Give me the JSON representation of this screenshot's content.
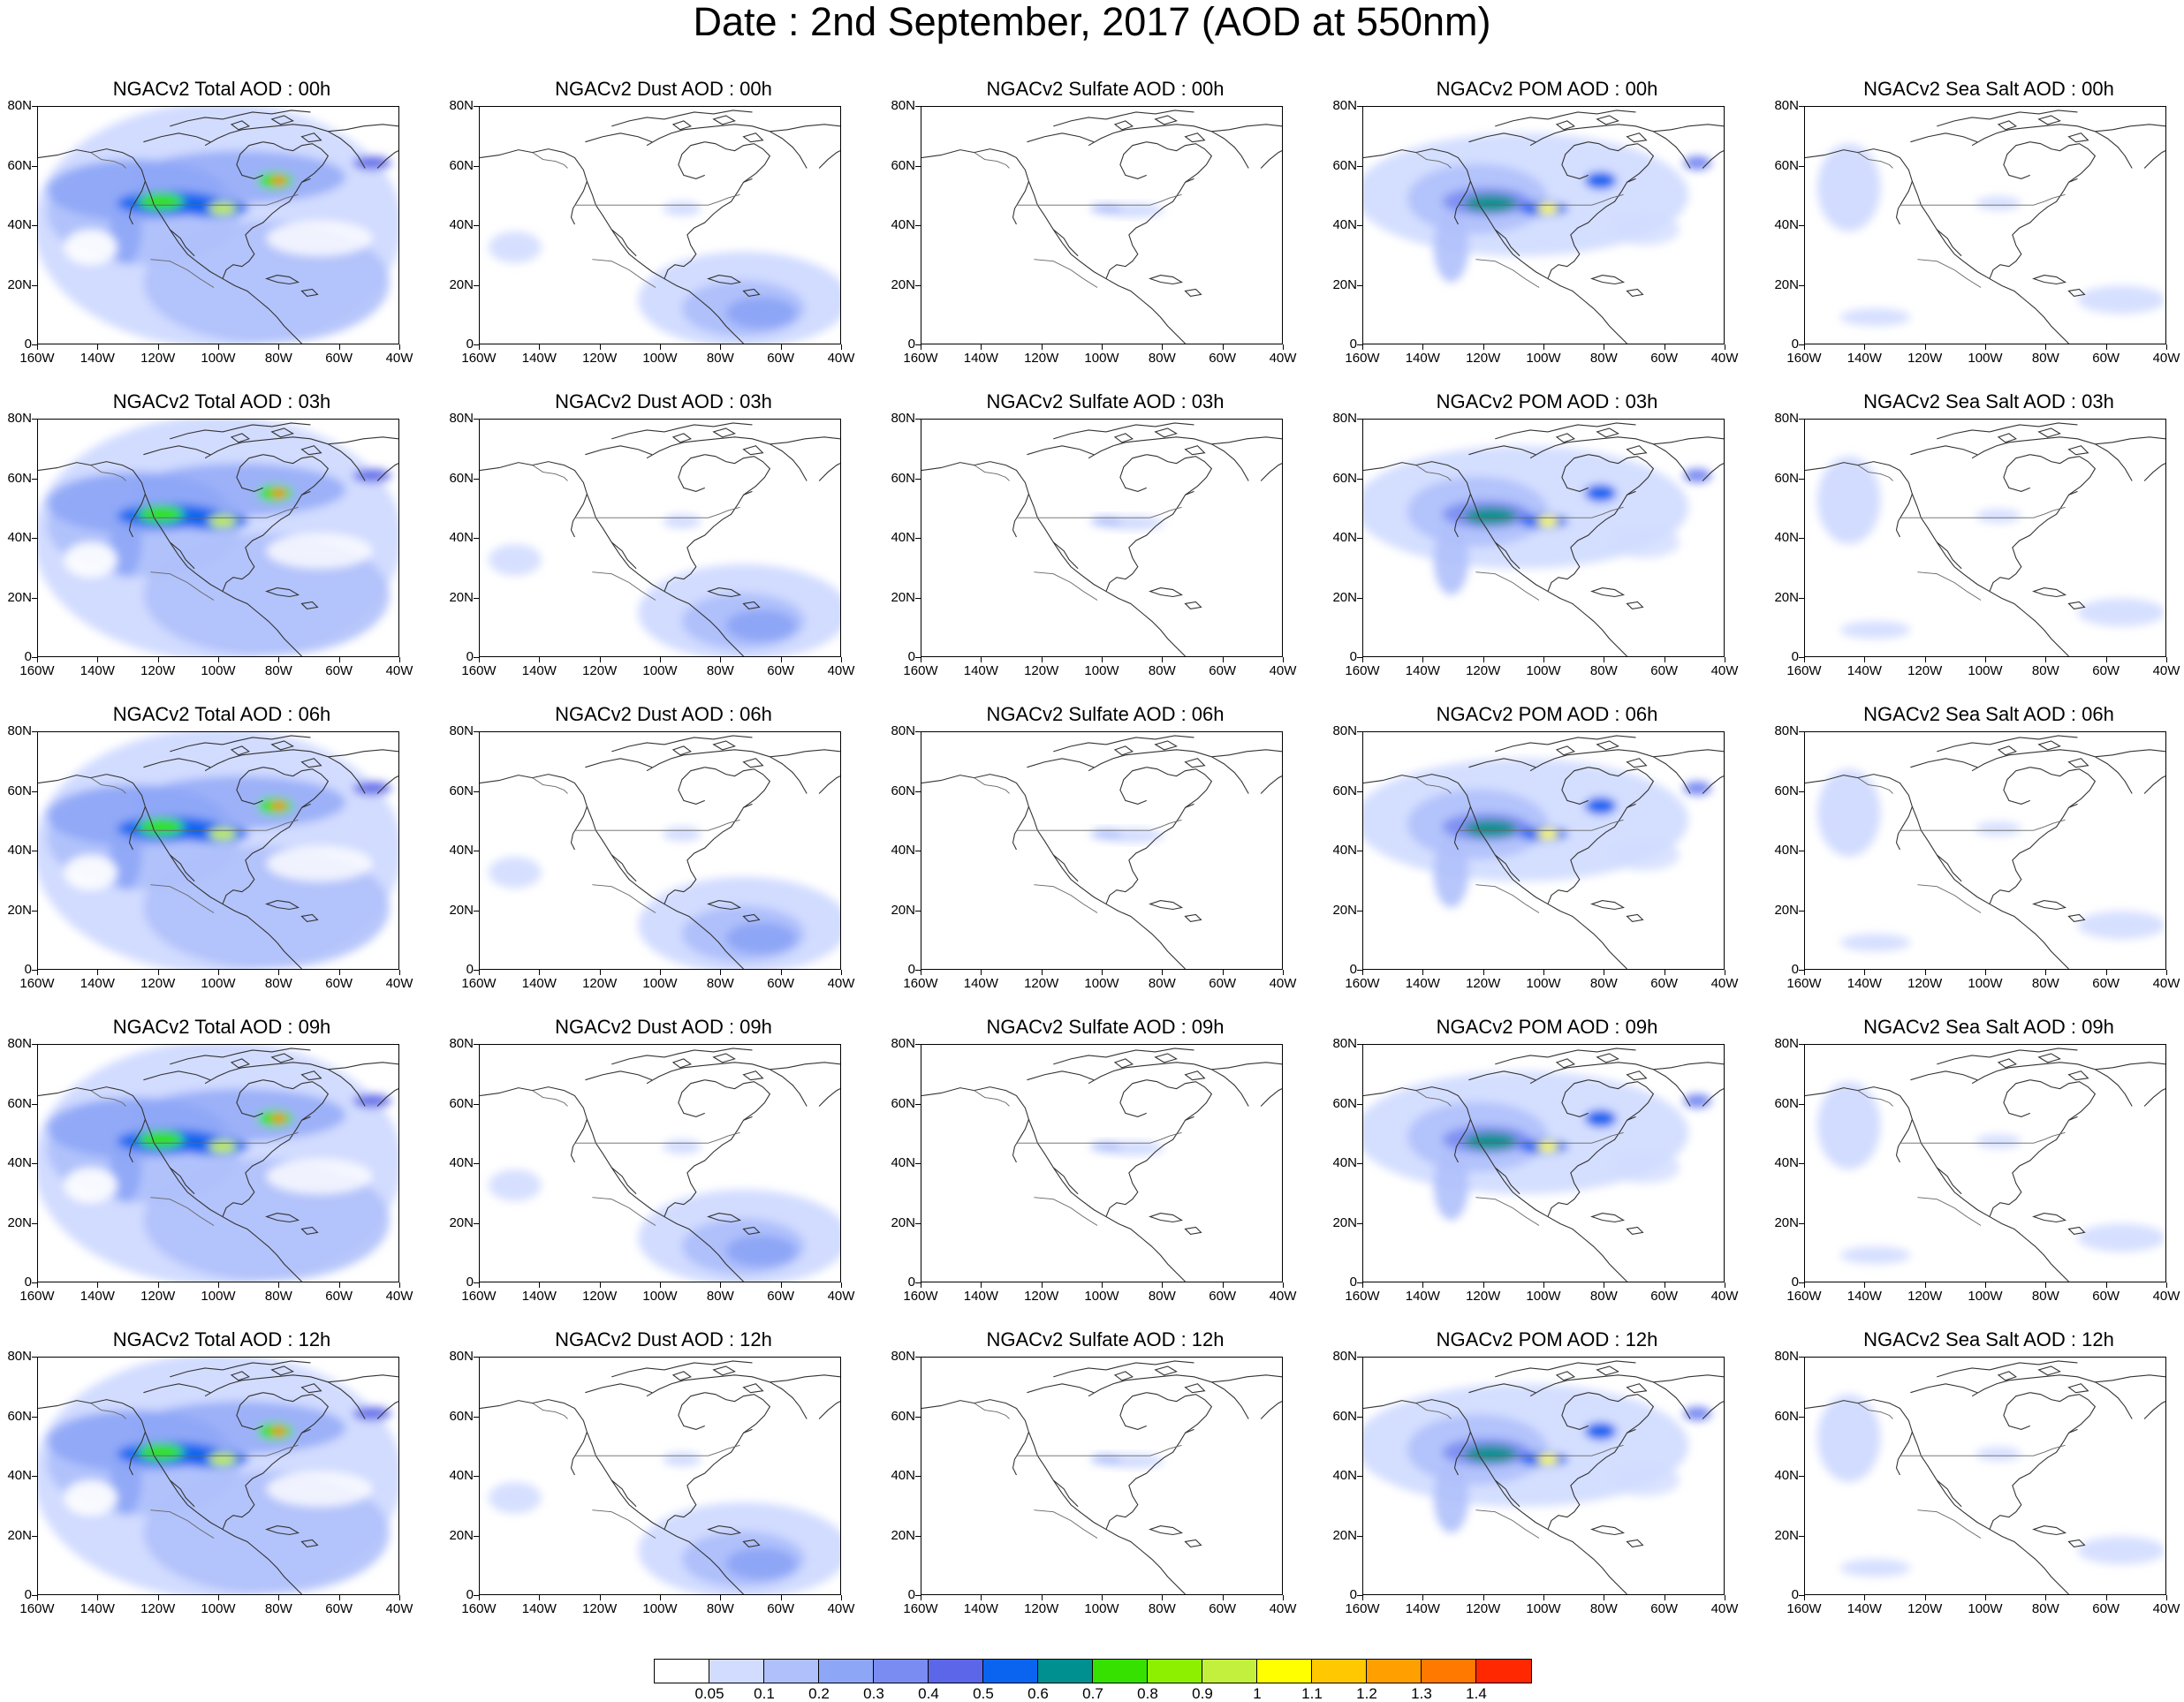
{
  "title": "Date : 2nd September, 2017 (AOD at 550nm)",
  "panels": [
    {
      "title": "NGACv2 Total AOD : 00h",
      "field": "total"
    },
    {
      "title": "NGACv2 Dust AOD : 00h",
      "field": "dust"
    },
    {
      "title": "NGACv2 Sulfate AOD : 00h",
      "field": "sulfate"
    },
    {
      "title": "NGACv2 POM AOD : 00h",
      "field": "pom"
    },
    {
      "title": "NGACv2 Sea Salt AOD : 00h",
      "field": "seasalt"
    },
    {
      "title": "NGACv2 Total AOD : 03h",
      "field": "total"
    },
    {
      "title": "NGACv2 Dust AOD : 03h",
      "field": "dust"
    },
    {
      "title": "NGACv2 Sulfate AOD : 03h",
      "field": "sulfate"
    },
    {
      "title": "NGACv2 POM AOD : 03h",
      "field": "pom"
    },
    {
      "title": "NGACv2 Sea Salt AOD : 03h",
      "field": "seasalt"
    },
    {
      "title": "NGACv2 Total AOD : 06h",
      "field": "total"
    },
    {
      "title": "NGACv2 Dust AOD : 06h",
      "field": "dust"
    },
    {
      "title": "NGACv2 Sulfate AOD : 06h",
      "field": "sulfate"
    },
    {
      "title": "NGACv2 POM AOD : 06h",
      "field": "pom"
    },
    {
      "title": "NGACv2 Sea Salt AOD : 06h",
      "field": "seasalt"
    },
    {
      "title": "NGACv2 Total AOD : 09h",
      "field": "total"
    },
    {
      "title": "NGACv2 Dust AOD : 09h",
      "field": "dust"
    },
    {
      "title": "NGACv2 Sulfate AOD : 09h",
      "field": "sulfate"
    },
    {
      "title": "NGACv2 POM AOD : 09h",
      "field": "pom"
    },
    {
      "title": "NGACv2 Sea Salt  AOD : 09h",
      "field": "seasalt"
    },
    {
      "title": "NGACv2 Total AOD  : 12h",
      "field": "total"
    },
    {
      "title": "NGACv2 Dust AOD : 12h",
      "field": "dust"
    },
    {
      "title": "NGACv2 Sulfate AOD : 12h",
      "field": "sulfate"
    },
    {
      "title": "NGACv2 POM  AOD : 12h",
      "field": "pom"
    },
    {
      "title": "NGACv2 Sea Salt  AOD : 12h",
      "field": "seasalt"
    }
  ],
  "lat_labels": [
    "80N",
    "60N",
    "40N",
    "20N",
    "0"
  ],
  "lon_labels": [
    "160W",
    "140W",
    "120W",
    "100W",
    "80W",
    "60W",
    "40W"
  ],
  "colorbar": {
    "labels": [
      "0.05",
      "0.1",
      "0.2",
      "0.3",
      "0.4",
      "0.5",
      "0.6",
      "0.7",
      "0.8",
      "0.9",
      "1",
      "1.1",
      "1.2",
      "1.3",
      "1.4"
    ],
    "colors": [
      "#ffffff",
      "#d2dcff",
      "#afc0fb",
      "#8ea6f6",
      "#7a8cf2",
      "#5c66e8",
      "#0a64f0",
      "#009090",
      "#36e100",
      "#8cf000",
      "#c3f03c",
      "#ffff00",
      "#ffc800",
      "#ffa000",
      "#ff7800",
      "#ff2800"
    ]
  }
}
